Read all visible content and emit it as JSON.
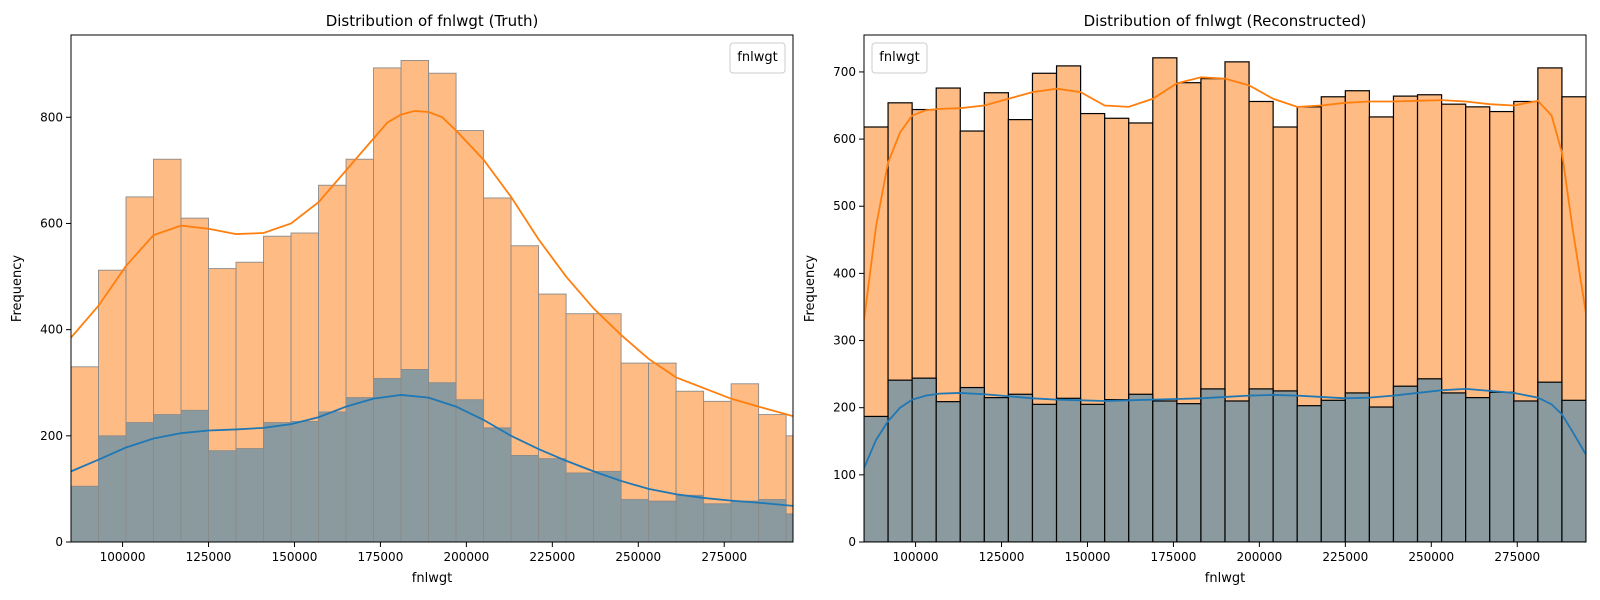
{
  "chart_data": [
    {
      "type": "histogram",
      "title": "Distribution of fnlwgt (Truth)",
      "xlabel": "fnlwgt",
      "ylabel": "Frequency",
      "legend_title": "fnlwgt",
      "legend_position": "top-right",
      "xlim": [
        85000,
        295000
      ],
      "ylim": [
        0,
        955
      ],
      "xticks": [
        100000,
        125000,
        150000,
        175000,
        200000,
        225000,
        250000,
        275000
      ],
      "yticks": [
        0,
        200,
        400,
        600,
        800
      ],
      "bin_edges": [
        78000,
        85000,
        93000,
        101000,
        109000,
        117000,
        125000,
        133000,
        141000,
        149000,
        157000,
        165000,
        173000,
        181000,
        189000,
        197000,
        205000,
        213000,
        221000,
        229000,
        237000,
        245000,
        253000,
        261000,
        269000,
        277000,
        285000,
        293000,
        301000
      ],
      "bar_edge_color": "#8a8a8a",
      "series": [
        {
          "color_fill": "#ffbb84",
          "color_line": "#ff7f0e",
          "values": [
            335,
            330,
            512,
            650,
            721,
            610,
            515,
            527,
            576,
            582,
            672,
            721,
            893,
            907,
            883,
            775,
            648,
            558,
            467,
            430,
            430,
            337,
            337,
            284,
            265,
            298,
            240,
            200
          ],
          "kde_x": [
            85000,
            93000,
            101000,
            109000,
            117000,
            125000,
            133000,
            141000,
            149000,
            157000,
            165000,
            173000,
            177000,
            181000,
            185000,
            189000,
            193000,
            197000,
            205000,
            213000,
            221000,
            229000,
            237000,
            245000,
            253000,
            261000,
            269000,
            277000,
            285000,
            295000
          ],
          "kde_y": [
            385,
            445,
            520,
            578,
            596,
            590,
            580,
            582,
            600,
            640,
            700,
            760,
            790,
            805,
            812,
            810,
            800,
            775,
            720,
            650,
            570,
            500,
            440,
            390,
            345,
            310,
            290,
            270,
            255,
            237
          ]
        },
        {
          "color_fill": "#8a9a9f",
          "color_line": "#1f77b4",
          "values": [
            115,
            105,
            200,
            225,
            240,
            248,
            172,
            176,
            225,
            227,
            245,
            272,
            308,
            325,
            300,
            268,
            215,
            163,
            157,
            130,
            133,
            80,
            77,
            88,
            72,
            77,
            80,
            53
          ],
          "kde_x": [
            85000,
            93000,
            101000,
            109000,
            117000,
            125000,
            133000,
            141000,
            149000,
            157000,
            165000,
            173000,
            181000,
            189000,
            197000,
            205000,
            213000,
            221000,
            229000,
            237000,
            245000,
            253000,
            261000,
            269000,
            277000,
            285000,
            295000
          ],
          "kde_y": [
            133,
            155,
            178,
            195,
            205,
            210,
            212,
            215,
            222,
            235,
            255,
            270,
            277,
            272,
            255,
            230,
            200,
            175,
            153,
            133,
            115,
            100,
            90,
            83,
            78,
            74,
            68
          ]
        }
      ]
    },
    {
      "type": "histogram",
      "title": "Distribution of fnlwgt (Reconstructed)",
      "xlabel": "fnlwgt",
      "ylabel": "Frequency",
      "legend_title": "fnlwgt",
      "legend_position": "top-left",
      "xlim": [
        85000,
        295000
      ],
      "ylim": [
        0,
        755
      ],
      "xticks": [
        100000,
        125000,
        150000,
        175000,
        200000,
        225000,
        250000,
        275000
      ],
      "yticks": [
        0,
        100,
        200,
        300,
        400,
        500,
        600,
        700
      ],
      "bin_edges": [
        85000,
        92000,
        99000,
        106000,
        113000,
        120000,
        127000,
        134000,
        141000,
        148000,
        155000,
        162000,
        169000,
        176000,
        183000,
        190000,
        197000,
        204000,
        211000,
        218000,
        225000,
        232000,
        239000,
        246000,
        253000,
        260000,
        267000,
        274000,
        281000,
        288000,
        295000
      ],
      "bar_edge_color": "#000000",
      "series": [
        {
          "color_fill": "#ffbb84",
          "color_line": "#ff7f0e",
          "values": [
            618,
            654,
            644,
            676,
            612,
            669,
            629,
            698,
            709,
            638,
            631,
            624,
            721,
            684,
            690,
            715,
            656,
            618,
            648,
            663,
            672,
            633,
            664,
            666,
            652,
            648,
            641,
            656,
            706,
            663
          ],
          "kde_x": [
            85000,
            88500,
            92000,
            95500,
            99000,
            103000,
            107000,
            113000,
            120000,
            127000,
            134000,
            141000,
            148000,
            155000,
            162000,
            169000,
            176000,
            183000,
            190000,
            197000,
            204000,
            211000,
            218000,
            225000,
            232000,
            239000,
            246000,
            253000,
            260000,
            267000,
            274000,
            281000,
            285000,
            288000,
            291000,
            295000
          ],
          "kde_y": [
            330,
            470,
            565,
            610,
            635,
            643,
            645,
            646,
            650,
            660,
            670,
            675,
            670,
            650,
            648,
            660,
            683,
            692,
            690,
            680,
            660,
            648,
            650,
            654,
            656,
            656,
            657,
            658,
            656,
            652,
            650,
            657,
            635,
            580,
            470,
            340
          ]
        },
        {
          "color_fill": "#8a9a9f",
          "color_line": "#1f77b4",
          "values": [
            187,
            241,
            244,
            209,
            230,
            215,
            220,
            205,
            214,
            205,
            212,
            220,
            210,
            206,
            228,
            210,
            228,
            225,
            203,
            211,
            222,
            201,
            232,
            243,
            222,
            215,
            223,
            210,
            238,
            211
          ],
          "kde_x": [
            85000,
            88500,
            92000,
            95500,
            99000,
            103000,
            107000,
            113000,
            120000,
            127000,
            134000,
            141000,
            148000,
            155000,
            162000,
            169000,
            176000,
            183000,
            190000,
            197000,
            204000,
            211000,
            218000,
            225000,
            232000,
            239000,
            246000,
            253000,
            260000,
            267000,
            274000,
            281000,
            285000,
            288000,
            291000,
            295000
          ],
          "kde_y": [
            110,
            152,
            180,
            200,
            212,
            218,
            221,
            222,
            220,
            217,
            214,
            212,
            211,
            210,
            211,
            212,
            213,
            214,
            216,
            218,
            219,
            218,
            216,
            214,
            215,
            218,
            222,
            226,
            228,
            225,
            222,
            215,
            205,
            190,
            165,
            130
          ]
        }
      ]
    }
  ]
}
